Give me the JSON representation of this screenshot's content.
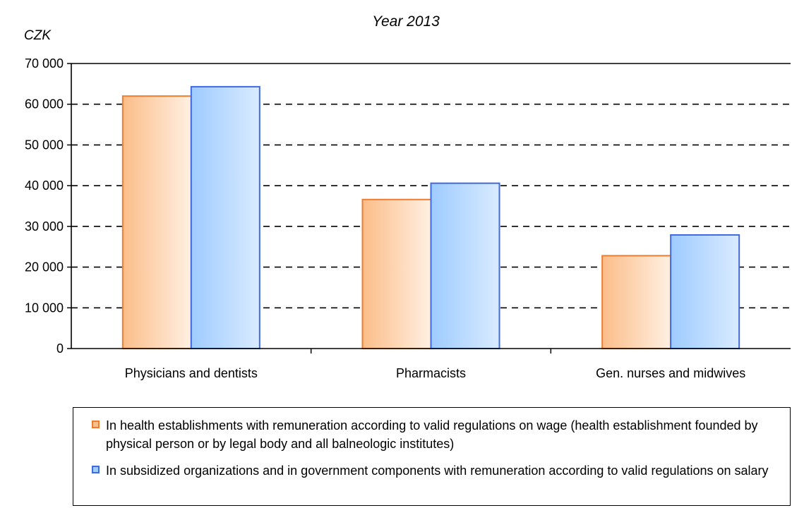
{
  "chart_data": {
    "type": "bar",
    "title": "Year 2013",
    "unit_label": "CZK",
    "categories": [
      "Physicians and dentists",
      "Pharmacists",
      "Gen. nurses and midwives"
    ],
    "series": [
      {
        "name": "In health establishments with remuneration according to valid regulations on wage (health establishment founded by physical person or by legal body and all balneologic institutes)",
        "values": [
          62000,
          36600,
          22800
        ],
        "color": "#ed7d31"
      },
      {
        "name": "In subsidized organizations and in government components with remuneration according to valid regulations on salary",
        "values": [
          64300,
          40600,
          27900
        ],
        "color": "#4169e1"
      }
    ],
    "ylim": [
      0,
      70000
    ],
    "yticks": [
      0,
      10000,
      20000,
      30000,
      40000,
      50000,
      60000,
      70000
    ],
    "ytick_labels": [
      "0",
      "10 000",
      "20 000",
      "30 000",
      "40 000",
      "50 000",
      "60 000",
      "70 000"
    ],
    "grid": "dashed horizontal",
    "legend_position": "bottom"
  }
}
